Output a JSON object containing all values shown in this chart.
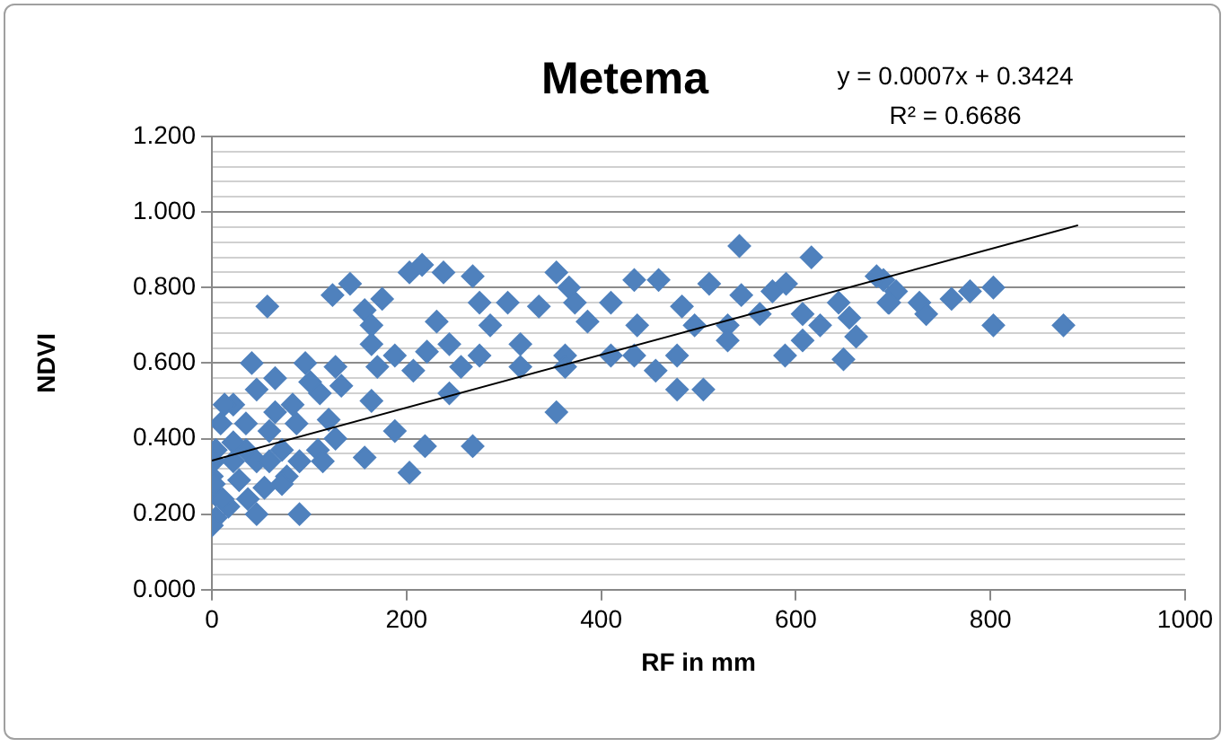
{
  "chart_data": {
    "type": "scatter",
    "title": "Metema",
    "xlabel": "RF in mm",
    "ylabel": "NDVI",
    "annotations": [
      "y = 0.0007x + 0.3424",
      "R² = 0.6686"
    ],
    "xlim": [
      0,
      1000
    ],
    "xticks": [
      0,
      200,
      400,
      600,
      800,
      1000
    ],
    "ylim": [
      0,
      1.2
    ],
    "yticks": [
      {
        "value": 0,
        "label": "0.000"
      },
      {
        "value": 0.04,
        "label": null
      },
      {
        "value": 0.08,
        "label": null
      },
      {
        "value": 0.12,
        "label": null
      },
      {
        "value": 0.16,
        "label": null
      },
      {
        "value": 0.2,
        "label": "0.200"
      },
      {
        "value": 0.24,
        "label": null
      },
      {
        "value": 0.28,
        "label": null
      },
      {
        "value": 0.32,
        "label": null
      },
      {
        "value": 0.36,
        "label": null
      },
      {
        "value": 0.4,
        "label": "0.400"
      },
      {
        "value": 0.44,
        "label": null
      },
      {
        "value": 0.48,
        "label": null
      },
      {
        "value": 0.52,
        "label": null
      },
      {
        "value": 0.56,
        "label": null
      },
      {
        "value": 0.6,
        "label": "0.600"
      },
      {
        "value": 0.64,
        "label": null
      },
      {
        "value": 0.68,
        "label": null
      },
      {
        "value": 0.72,
        "label": null
      },
      {
        "value": 0.76,
        "label": null
      },
      {
        "value": 0.8,
        "label": "0.800"
      },
      {
        "value": 0.84,
        "label": null
      },
      {
        "value": 0.88,
        "label": null
      },
      {
        "value": 0.92,
        "label": null
      },
      {
        "value": 0.96,
        "label": null
      },
      {
        "value": 1.0,
        "label": "1.000"
      },
      {
        "value": 1.04,
        "label": null
      },
      {
        "value": 1.08,
        "label": null
      },
      {
        "value": 1.12,
        "label": null
      },
      {
        "value": 1.16,
        "label": null
      },
      {
        "value": 1.2,
        "label": "1.200"
      }
    ],
    "grid": "y",
    "legend": false,
    "series": [
      {
        "color": "#4f81bd",
        "marker": "diamond",
        "x": [
          690,
          703,
          696,
          727,
          734,
          760,
          779,
          803,
          803,
          875,
          354,
          336,
          367,
          373,
          363,
          363,
          354,
          386,
          410,
          434,
          459,
          437,
          434,
          410,
          456,
          478,
          478,
          505,
          483,
          511,
          542,
          544,
          530,
          530,
          576,
          590,
          616,
          607,
          625,
          607,
          589,
          644,
          655,
          662,
          649,
          683,
          695,
          563,
          496,
          57,
          124,
          142,
          203,
          216,
          238,
          268,
          175,
          157,
          164,
          164,
          231,
          221,
          244,
          275,
          286,
          304,
          317,
          275,
          256,
          188,
          207,
          170,
          164,
          188,
          219,
          203,
          268,
          157,
          244,
          317,
          41,
          96,
          65,
          127,
          133,
          111,
          83,
          46,
          22,
          35,
          59,
          87,
          120,
          127,
          109,
          90,
          114,
          77,
          54,
          46,
          90,
          72,
          22,
          4,
          0,
          4,
          4,
          17,
          0,
          9,
          13,
          35,
          28,
          46,
          22,
          2,
          2,
          11,
          37,
          59,
          72,
          65,
          101
        ],
        "values": [
          0.82,
          0.79,
          0.76,
          0.76,
          0.73,
          0.77,
          0.79,
          0.8,
          0.7,
          0.7,
          0.84,
          0.75,
          0.8,
          0.76,
          0.62,
          0.59,
          0.47,
          0.71,
          0.76,
          0.82,
          0.82,
          0.7,
          0.62,
          0.62,
          0.58,
          0.62,
          0.53,
          0.53,
          0.75,
          0.81,
          0.91,
          0.78,
          0.7,
          0.66,
          0.79,
          0.81,
          0.88,
          0.73,
          0.7,
          0.66,
          0.62,
          0.76,
          0.72,
          0.67,
          0.61,
          0.83,
          0.76,
          0.73,
          0.7,
          0.75,
          0.78,
          0.81,
          0.84,
          0.86,
          0.84,
          0.83,
          0.77,
          0.74,
          0.7,
          0.65,
          0.71,
          0.63,
          0.65,
          0.76,
          0.7,
          0.76,
          0.65,
          0.62,
          0.59,
          0.62,
          0.58,
          0.59,
          0.5,
          0.42,
          0.38,
          0.31,
          0.38,
          0.35,
          0.52,
          0.59,
          0.6,
          0.6,
          0.56,
          0.59,
          0.54,
          0.52,
          0.49,
          0.53,
          0.49,
          0.44,
          0.42,
          0.44,
          0.45,
          0.4,
          0.37,
          0.34,
          0.34,
          0.3,
          0.27,
          0.2,
          0.2,
          0.28,
          0.34,
          0.37,
          0.3,
          0.25,
          0.19,
          0.22,
          0.17,
          0.44,
          0.49,
          0.37,
          0.29,
          0.34,
          0.39,
          0.34,
          0.28,
          0.24,
          0.24,
          0.34,
          0.37,
          0.47,
          0.55
        ]
      },
      {
        "type": "line",
        "color": "#000000",
        "marker": "none",
        "x": [
          0,
          890
        ],
        "values": [
          0.342,
          0.965
        ]
      }
    ]
  }
}
